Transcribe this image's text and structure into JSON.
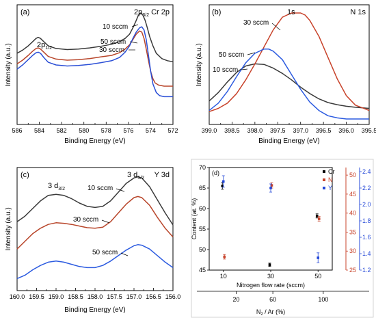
{
  "chart_data": [
    {
      "type": "line",
      "panel_label": "(a)",
      "corner_label": "Cr 2p",
      "xlabel": "Binding Energy (eV)",
      "ylabel": "Intensity (a.u.)",
      "xlim": [
        586,
        572
      ],
      "xticks": [
        "586",
        "584",
        "582",
        "580",
        "578",
        "576",
        "574",
        "572"
      ],
      "peak_labels": [
        {
          "base": "2p",
          "sub": "1/2",
          "x": 584.0
        },
        {
          "base": "2p",
          "sub": "3/2",
          "x": 574.8
        }
      ],
      "annotations": [
        {
          "text": "10 sccm",
          "series": 0
        },
        {
          "text": "50 sccm",
          "series": 2
        },
        {
          "text": "30 sccm",
          "series": 1
        }
      ],
      "series": [
        {
          "color": "#3a3a3a",
          "x": [
            586,
            585.5,
            585,
            584.6,
            584.3,
            584.1,
            583.9,
            583.6,
            583.2,
            582.5,
            581.5,
            580.5,
            579.5,
            578.5,
            577.5,
            576.8,
            576.3,
            575.9,
            575.6,
            575.3,
            575.1,
            574.9,
            574.7,
            574.5,
            574.3,
            574.1,
            573.8,
            573.5,
            573.0,
            572.5,
            572.0
          ],
          "y": [
            0.62,
            0.65,
            0.69,
            0.73,
            0.76,
            0.77,
            0.76,
            0.73,
            0.69,
            0.665,
            0.655,
            0.66,
            0.67,
            0.685,
            0.705,
            0.73,
            0.76,
            0.8,
            0.86,
            0.93,
            0.98,
            1.0,
            0.98,
            0.93,
            0.86,
            0.78,
            0.69,
            0.62,
            0.57,
            0.55,
            0.54
          ]
        },
        {
          "color": "#b8452a",
          "x": [
            586,
            585.5,
            585,
            584.6,
            584.3,
            584.1,
            583.9,
            583.6,
            583.2,
            582.5,
            581.5,
            580.5,
            579.5,
            578.5,
            577.5,
            576.8,
            576.3,
            575.9,
            575.6,
            575.3,
            575.0,
            574.8,
            574.6,
            574.4,
            574.2,
            574.0,
            573.8,
            573.6,
            573.3,
            572.8,
            572.0
          ],
          "y": [
            0.52,
            0.555,
            0.6,
            0.64,
            0.665,
            0.67,
            0.66,
            0.63,
            0.59,
            0.565,
            0.555,
            0.56,
            0.57,
            0.585,
            0.6,
            0.625,
            0.66,
            0.7,
            0.75,
            0.8,
            0.83,
            0.82,
            0.76,
            0.66,
            0.55,
            0.45,
            0.38,
            0.34,
            0.32,
            0.31,
            0.31
          ]
        },
        {
          "color": "#2b4fd6",
          "x": [
            586,
            585.5,
            585,
            584.6,
            584.3,
            584.1,
            583.9,
            583.6,
            583.2,
            582.5,
            581.5,
            580.5,
            579.5,
            578.5,
            577.5,
            576.8,
            576.3,
            575.9,
            575.6,
            575.3,
            575.0,
            574.8,
            574.6,
            574.4,
            574.2,
            574.0,
            573.8,
            573.5,
            573.2,
            572.8,
            572.0
          ],
          "y": [
            0.47,
            0.51,
            0.56,
            0.6,
            0.625,
            0.63,
            0.62,
            0.58,
            0.535,
            0.51,
            0.5,
            0.505,
            0.515,
            0.53,
            0.55,
            0.58,
            0.63,
            0.69,
            0.76,
            0.82,
            0.86,
            0.87,
            0.84,
            0.75,
            0.6,
            0.45,
            0.33,
            0.25,
            0.22,
            0.21,
            0.21
          ]
        }
      ]
    },
    {
      "type": "line",
      "panel_label": "(b)",
      "corner_label": "N 1s",
      "xlabel": "Binding Energy (eV)",
      "ylabel": "Intensity (a.u.)",
      "xlim": [
        399.0,
        395.5
      ],
      "xticks": [
        "399.0",
        "398.5",
        "398.0",
        "397.5",
        "397.0",
        "396.5",
        "396.0",
        "395.5"
      ],
      "peak_labels": [
        {
          "base": "1s",
          "sub": "",
          "x": 397.05
        }
      ],
      "annotations": [
        {
          "text": "30 sccm",
          "series": 1
        },
        {
          "text": "50 sccm",
          "series": 2
        },
        {
          "text": "10 sccm",
          "series": 0
        }
      ],
      "series": [
        {
          "color": "#3a3a3a",
          "x": [
            399.0,
            398.8,
            398.6,
            398.4,
            398.2,
            398.0,
            397.8,
            397.6,
            397.4,
            397.2,
            397.0,
            396.8,
            396.6,
            396.4,
            396.2,
            396.0,
            395.8,
            395.5
          ],
          "y": [
            0.17,
            0.25,
            0.35,
            0.44,
            0.5,
            0.52,
            0.515,
            0.48,
            0.43,
            0.37,
            0.3,
            0.24,
            0.19,
            0.155,
            0.135,
            0.12,
            0.11,
            0.1
          ]
        },
        {
          "color": "#c8432b",
          "x": [
            399.0,
            398.8,
            398.6,
            398.4,
            398.2,
            398.0,
            397.8,
            397.6,
            397.4,
            397.2,
            397.1,
            397.0,
            396.9,
            396.8,
            396.6,
            396.4,
            396.2,
            396.0,
            395.8,
            395.5
          ],
          "y": [
            0.07,
            0.1,
            0.15,
            0.24,
            0.37,
            0.52,
            0.68,
            0.84,
            0.96,
            1.0,
            1.0,
            1.0,
            0.98,
            0.93,
            0.78,
            0.58,
            0.38,
            0.22,
            0.13,
            0.08
          ]
        },
        {
          "color": "#2c5be0",
          "x": [
            399.0,
            398.8,
            398.6,
            398.4,
            398.2,
            398.0,
            397.8,
            397.7,
            397.6,
            397.4,
            397.2,
            397.0,
            396.8,
            396.6,
            396.4,
            396.2,
            396.0,
            395.8,
            395.5
          ],
          "y": [
            0.08,
            0.15,
            0.26,
            0.4,
            0.53,
            0.62,
            0.66,
            0.66,
            0.64,
            0.56,
            0.42,
            0.28,
            0.16,
            0.08,
            0.03,
            0.01,
            0.0,
            0.0,
            0.0
          ]
        }
      ]
    },
    {
      "type": "line",
      "panel_label": "(c)",
      "corner_label": "Y 3d",
      "xlabel": "Binding Energy (eV)",
      "ylabel": "Intensity (a.u.)",
      "xlim": [
        160.0,
        156.0
      ],
      "xticks": [
        "160.0",
        "159.5",
        "159.0",
        "158.5",
        "158.0",
        "157.5",
        "157.0",
        "156.5",
        "156.0"
      ],
      "peak_labels": [
        {
          "base": "3 d",
          "sub": "3/2",
          "x": 159.0
        },
        {
          "base": "3 d",
          "sub": "5/2",
          "x": 156.9
        }
      ],
      "annotations": [
        {
          "text": "10 sccm",
          "series": 0
        },
        {
          "text": "30 sccm",
          "series": 1
        },
        {
          "text": "50 sccm",
          "series": 2
        }
      ],
      "series": [
        {
          "color": "#3a3a3a",
          "x": [
            160.0,
            159.8,
            159.6,
            159.4,
            159.2,
            159.0,
            158.8,
            158.6,
            158.4,
            158.2,
            158.0,
            157.8,
            157.6,
            157.4,
            157.2,
            157.0,
            156.9,
            156.8,
            156.6,
            156.4,
            156.2,
            156.0
          ],
          "y": [
            0.58,
            0.63,
            0.7,
            0.77,
            0.82,
            0.83,
            0.82,
            0.79,
            0.75,
            0.72,
            0.71,
            0.72,
            0.77,
            0.85,
            0.93,
            0.98,
            0.99,
            0.98,
            0.9,
            0.78,
            0.66,
            0.55
          ]
        },
        {
          "color": "#b8452a",
          "x": [
            160.0,
            159.8,
            159.6,
            159.4,
            159.2,
            159.0,
            158.8,
            158.6,
            158.4,
            158.2,
            158.0,
            157.8,
            157.6,
            157.4,
            157.2,
            157.0,
            156.9,
            156.8,
            156.6,
            156.4,
            156.2,
            156.0
          ],
          "y": [
            0.33,
            0.4,
            0.47,
            0.52,
            0.555,
            0.57,
            0.565,
            0.555,
            0.54,
            0.525,
            0.52,
            0.53,
            0.58,
            0.66,
            0.74,
            0.8,
            0.81,
            0.8,
            0.73,
            0.62,
            0.52,
            0.44
          ]
        },
        {
          "color": "#2c5be0",
          "x": [
            160.0,
            159.8,
            159.6,
            159.4,
            159.2,
            159.0,
            158.8,
            158.6,
            158.4,
            158.2,
            158.0,
            157.8,
            157.6,
            157.4,
            157.2,
            157.0,
            156.9,
            156.8,
            156.6,
            156.4,
            156.2,
            156.0
          ],
          "y": [
            0.06,
            0.09,
            0.14,
            0.18,
            0.21,
            0.22,
            0.21,
            0.19,
            0.17,
            0.16,
            0.16,
            0.18,
            0.22,
            0.27,
            0.32,
            0.36,
            0.37,
            0.365,
            0.33,
            0.27,
            0.21,
            0.16
          ]
        }
      ]
    },
    {
      "type": "scatter",
      "panel_label": "(d)",
      "xlabel": "Nitrogen flow rate (sccm)",
      "x2label_base": "N",
      "x2label_sub": "2",
      "x2label_rest": " / Ar (%)",
      "ylabel": "Content (at. %)",
      "xticks": [
        10,
        30,
        50
      ],
      "xlim": [
        4,
        56
      ],
      "x2ticks": [
        {
          "label": "20",
          "x": 15.4
        },
        {
          "label": "60",
          "x": 30.9
        },
        {
          "label": "100",
          "x": 52.2
        }
      ],
      "ylim_left": [
        45,
        70
      ],
      "yticks_left": [
        45,
        50,
        55,
        60,
        65,
        70
      ],
      "ylim_right_red": [
        25,
        52
      ],
      "yticks_right_red": [
        25,
        30,
        35,
        40,
        45,
        50
      ],
      "ylim_right_blue": [
        1.2,
        2.45
      ],
      "yticks_right_blue": [
        "1.2",
        "1.4",
        "1.6",
        "1.8",
        "2.0",
        "2.2",
        "2.4"
      ],
      "legend_position": "top-right",
      "series": [
        {
          "name": "Cr",
          "color": "#000000",
          "axis": "left",
          "x": [
            10,
            30,
            50
          ],
          "y": [
            65.5,
            46.3,
            58.2
          ],
          "err": [
            0.8,
            0.4,
            0.5
          ]
        },
        {
          "name": "N",
          "color": "#c8432b",
          "axis": "right_red",
          "x": [
            10,
            30,
            50
          ],
          "y": [
            28.5,
            47.3,
            38.5
          ],
          "err": [
            0.6,
            0.7,
            0.6
          ]
        },
        {
          "name": "Y",
          "color": "#2448d8",
          "axis": "right_blue",
          "x": [
            10,
            30,
            50
          ],
          "y": [
            2.28,
            2.2,
            1.35
          ],
          "err": [
            0.07,
            0.05,
            0.06
          ]
        }
      ]
    }
  ]
}
